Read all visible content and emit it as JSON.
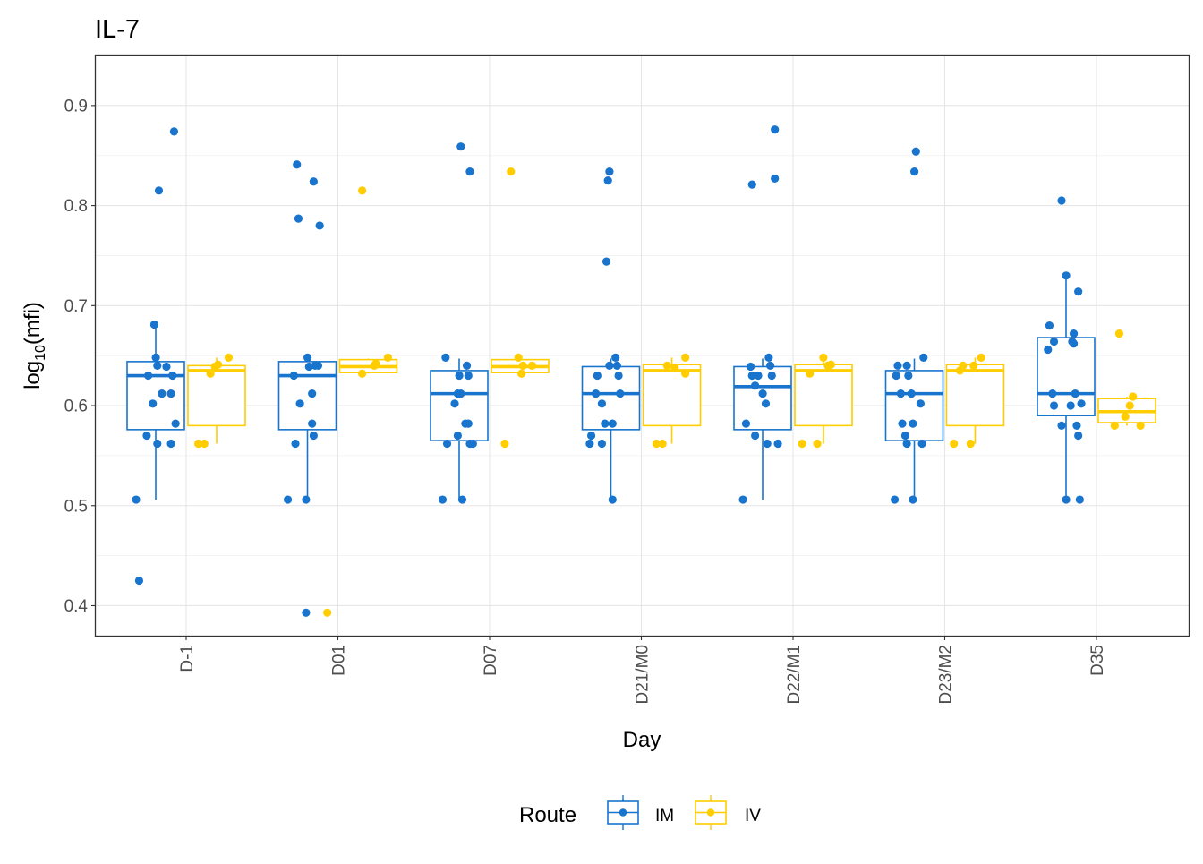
{
  "colors": {
    "IM": "#1874CD",
    "IV": "#FFCD00",
    "panel_border": "#333333",
    "grid": "#e6e6e6"
  },
  "chart_data": {
    "type": "box",
    "title": "IL-7",
    "xlabel": "Day",
    "ylabel_base": "log",
    "ylabel_sub": "10",
    "ylabel_tail": "(mfi)",
    "ylim": [
      0.37,
      0.95
    ],
    "yticks": [
      0.4,
      0.5,
      0.6,
      0.7,
      0.8,
      0.9
    ],
    "ytick_labels": [
      "0.4",
      "0.5",
      "0.6",
      "0.7",
      "0.8",
      "0.9"
    ],
    "categories": [
      "D-1",
      "D01",
      "D07",
      "D21/M0",
      "D22/M1",
      "D23/M2",
      "D35"
    ],
    "legend": {
      "title": "Route",
      "position": "bottom",
      "items": [
        "IM",
        "IV"
      ]
    },
    "grid": true,
    "series": [
      {
        "name": "IM",
        "boxes": [
          {
            "low": 0.506,
            "q1": 0.576,
            "median": 0.63,
            "q3": 0.644,
            "high": 0.681
          },
          {
            "low": 0.506,
            "q1": 0.576,
            "median": 0.63,
            "q3": 0.644,
            "high": 0.647
          },
          {
            "low": 0.506,
            "q1": 0.565,
            "median": 0.612,
            "q3": 0.635,
            "high": 0.647
          },
          {
            "low": 0.506,
            "q1": 0.576,
            "median": 0.612,
            "q3": 0.639,
            "high": 0.647
          },
          {
            "low": 0.506,
            "q1": 0.576,
            "median": 0.619,
            "q3": 0.639,
            "high": 0.647
          },
          {
            "low": 0.506,
            "q1": 0.565,
            "median": 0.612,
            "q3": 0.635,
            "high": 0.647
          },
          {
            "low": 0.506,
            "q1": 0.59,
            "median": 0.612,
            "q3": 0.668,
            "high": 0.73
          }
        ],
        "points": [
          [
            [
              -0.33,
              0.506
            ],
            [
              -0.31,
              0.425
            ],
            [
              -0.26,
              0.57
            ],
            [
              -0.25,
              0.63
            ],
            [
              -0.22,
              0.602
            ],
            [
              -0.21,
              0.681
            ],
            [
              -0.2,
              0.648
            ],
            [
              -0.19,
              0.562
            ],
            [
              -0.19,
              0.64
            ],
            [
              -0.18,
              0.815
            ],
            [
              -0.16,
              0.612
            ],
            [
              -0.13,
              0.639
            ],
            [
              -0.1,
              0.612
            ],
            [
              -0.1,
              0.562
            ],
            [
              -0.08,
              0.874
            ],
            [
              -0.09,
              0.63
            ],
            [
              -0.07,
              0.582
            ]
          ],
          [
            [
              -0.33,
              0.506
            ],
            [
              -0.29,
              0.63
            ],
            [
              -0.28,
              0.562
            ],
            [
              -0.27,
              0.841
            ],
            [
              -0.26,
              0.787
            ],
            [
              -0.25,
              0.602
            ],
            [
              -0.21,
              0.506
            ],
            [
              -0.21,
              0.393
            ],
            [
              -0.2,
              0.648
            ],
            [
              -0.19,
              0.639
            ],
            [
              -0.17,
              0.612
            ],
            [
              -0.17,
              0.582
            ],
            [
              -0.16,
              0.824
            ],
            [
              -0.16,
              0.57
            ],
            [
              -0.15,
              0.64
            ],
            [
              -0.13,
              0.64
            ],
            [
              -0.12,
              0.78
            ]
          ],
          [
            [
              -0.31,
              0.506
            ],
            [
              -0.29,
              0.648
            ],
            [
              -0.28,
              0.562
            ],
            [
              -0.23,
              0.602
            ],
            [
              -0.21,
              0.612
            ],
            [
              -0.21,
              0.57
            ],
            [
              -0.2,
              0.63
            ],
            [
              -0.19,
              0.859
            ],
            [
              -0.19,
              0.612
            ],
            [
              -0.18,
              0.506
            ],
            [
              -0.16,
              0.582
            ],
            [
              -0.15,
              0.64
            ],
            [
              -0.14,
              0.63
            ],
            [
              -0.14,
              0.582
            ],
            [
              -0.13,
              0.834
            ],
            [
              -0.13,
              0.562
            ],
            [
              -0.11,
              0.562
            ]
          ],
          [
            [
              -0.34,
              0.562
            ],
            [
              -0.33,
              0.57
            ],
            [
              -0.3,
              0.612
            ],
            [
              -0.29,
              0.63
            ],
            [
              -0.26,
              0.562
            ],
            [
              -0.26,
              0.602
            ],
            [
              -0.24,
              0.582
            ],
            [
              -0.23,
              0.744
            ],
            [
              -0.22,
              0.825
            ],
            [
              -0.21,
              0.834
            ],
            [
              -0.21,
              0.64
            ],
            [
              -0.19,
              0.582
            ],
            [
              -0.19,
              0.506
            ],
            [
              -0.17,
              0.648
            ],
            [
              -0.16,
              0.64
            ],
            [
              -0.15,
              0.63
            ],
            [
              -0.14,
              0.612
            ]
          ],
          [
            [
              -0.33,
              0.506
            ],
            [
              -0.31,
              0.582
            ],
            [
              -0.28,
              0.639
            ],
            [
              -0.27,
              0.821
            ],
            [
              -0.27,
              0.63
            ],
            [
              -0.25,
              0.57
            ],
            [
              -0.25,
              0.62
            ],
            [
              -0.23,
              0.63
            ],
            [
              -0.2,
              0.612
            ],
            [
              -0.18,
              0.602
            ],
            [
              -0.17,
              0.562
            ],
            [
              -0.16,
              0.648
            ],
            [
              -0.15,
              0.64
            ],
            [
              -0.14,
              0.63
            ],
            [
              -0.12,
              0.876
            ],
            [
              -0.12,
              0.827
            ],
            [
              -0.1,
              0.562
            ]
          ],
          [
            [
              -0.33,
              0.506
            ],
            [
              -0.32,
              0.63
            ],
            [
              -0.31,
              0.64
            ],
            [
              -0.29,
              0.612
            ],
            [
              -0.28,
              0.582
            ],
            [
              -0.26,
              0.57
            ],
            [
              -0.25,
              0.562
            ],
            [
              -0.25,
              0.64
            ],
            [
              -0.24,
              0.63
            ],
            [
              -0.22,
              0.612
            ],
            [
              -0.21,
              0.582
            ],
            [
              -0.21,
              0.506
            ],
            [
              -0.2,
              0.834
            ],
            [
              -0.19,
              0.854
            ],
            [
              -0.16,
              0.602
            ],
            [
              -0.15,
              0.562
            ],
            [
              -0.14,
              0.648
            ]
          ],
          [
            [
              -0.32,
              0.656
            ],
            [
              -0.31,
              0.68
            ],
            [
              -0.29,
              0.612
            ],
            [
              -0.28,
              0.6
            ],
            [
              -0.28,
              0.664
            ],
            [
              -0.23,
              0.805
            ],
            [
              -0.23,
              0.58
            ],
            [
              -0.2,
              0.506
            ],
            [
              -0.2,
              0.73
            ],
            [
              -0.17,
              0.6
            ],
            [
              -0.16,
              0.664
            ],
            [
              -0.15,
              0.662
            ],
            [
              -0.15,
              0.672
            ],
            [
              -0.14,
              0.612
            ],
            [
              -0.13,
              0.58
            ],
            [
              -0.12,
              0.714
            ],
            [
              -0.12,
              0.57
            ],
            [
              -0.11,
              0.506
            ],
            [
              -0.1,
              0.602
            ]
          ]
        ]
      },
      {
        "name": "IV",
        "boxes": [
          {
            "low": 0.562,
            "q1": 0.58,
            "median": 0.635,
            "q3": 0.64,
            "high": 0.648
          },
          {
            "low": 0.632,
            "q1": 0.633,
            "median": 0.639,
            "q3": 0.646,
            "high": 0.647
          },
          {
            "low": 0.632,
            "q1": 0.633,
            "median": 0.639,
            "q3": 0.646,
            "high": 0.648
          },
          {
            "low": 0.562,
            "q1": 0.58,
            "median": 0.635,
            "q3": 0.641,
            "high": 0.648
          },
          {
            "low": 0.562,
            "q1": 0.58,
            "median": 0.635,
            "q3": 0.641,
            "high": 0.648
          },
          {
            "low": 0.562,
            "q1": 0.58,
            "median": 0.635,
            "q3": 0.641,
            "high": 0.648
          },
          {
            "low": 0.58,
            "q1": 0.583,
            "median": 0.594,
            "q3": 0.607,
            "high": 0.609
          }
        ],
        "points": [
          [
            [
              0.08,
              0.562
            ],
            [
              0.12,
              0.562
            ],
            [
              0.16,
              0.632
            ],
            [
              0.19,
              0.639
            ],
            [
              0.21,
              0.641
            ],
            [
              0.28,
              0.648
            ]
          ],
          [
            [
              -0.07,
              0.393
            ],
            [
              0.16,
              0.632
            ],
            [
              0.16,
              0.815
            ],
            [
              0.24,
              0.64
            ],
            [
              0.25,
              0.642
            ],
            [
              0.33,
              0.648
            ]
          ],
          [
            [
              0.1,
              0.562
            ],
            [
              0.14,
              0.834
            ],
            [
              0.19,
              0.648
            ],
            [
              0.21,
              0.632
            ],
            [
              0.22,
              0.64
            ],
            [
              0.28,
              0.64
            ]
          ],
          [
            [
              0.1,
              0.562
            ],
            [
              0.14,
              0.562
            ],
            [
              0.17,
              0.64
            ],
            [
              0.22,
              0.638
            ],
            [
              0.29,
              0.632
            ],
            [
              0.29,
              0.648
            ]
          ],
          [
            [
              0.06,
              0.562
            ],
            [
              0.11,
              0.632
            ],
            [
              0.16,
              0.562
            ],
            [
              0.2,
              0.648
            ],
            [
              0.23,
              0.64
            ],
            [
              0.25,
              0.641
            ]
          ],
          [
            [
              0.06,
              0.562
            ],
            [
              0.1,
              0.635
            ],
            [
              0.12,
              0.64
            ],
            [
              0.17,
              0.562
            ],
            [
              0.19,
              0.64
            ],
            [
              0.24,
              0.648
            ]
          ],
          [
            [
              0.12,
              0.58
            ],
            [
              0.15,
              0.672
            ],
            [
              0.19,
              0.589
            ],
            [
              0.22,
              0.6
            ],
            [
              0.24,
              0.609
            ],
            [
              0.29,
              0.58
            ]
          ]
        ]
      }
    ]
  }
}
